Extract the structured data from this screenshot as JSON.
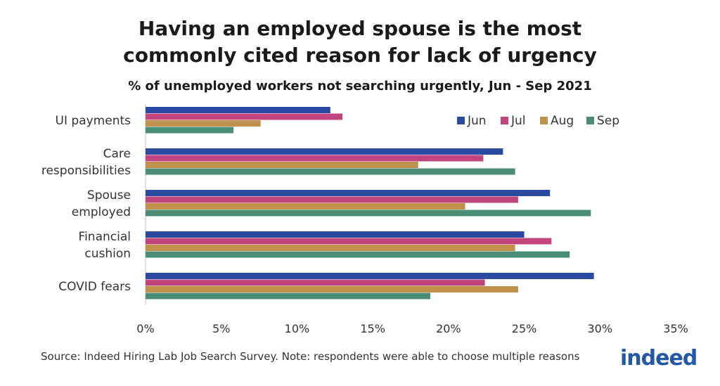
{
  "chart_data": {
    "type": "bar",
    "orientation": "horizontal",
    "title": "Having an employed spouse is the most commonly cited reason for lack of urgency",
    "subtitle": "% of unemployed workers not searching urgently, Jun - Sep 2021",
    "categories": [
      [
        "UI payments"
      ],
      [
        "Care",
        "responsibilities"
      ],
      [
        "Spouse",
        "employed"
      ],
      [
        "Financial",
        "cushion"
      ],
      [
        "COVID fears"
      ]
    ],
    "series": [
      {
        "name": "Jun",
        "color": "#2b4ba3",
        "values": [
          12.2,
          23.6,
          26.7,
          25.0,
          29.6
        ]
      },
      {
        "name": "Jul",
        "color": "#c2447f",
        "values": [
          13.0,
          22.3,
          24.6,
          26.8,
          22.4
        ]
      },
      {
        "name": "Aug",
        "color": "#c0914a",
        "values": [
          7.6,
          18.0,
          21.1,
          24.4,
          24.6
        ]
      },
      {
        "name": "Sep",
        "color": "#4a8c74",
        "values": [
          5.8,
          24.4,
          29.4,
          28.0,
          18.8
        ]
      }
    ],
    "xlim": [
      0,
      35
    ],
    "xticks": [
      "0%",
      "5%",
      "10%",
      "15%",
      "20%",
      "25%",
      "30%",
      "35%"
    ],
    "xlabel": "",
    "ylabel": "",
    "legend_position": "top-right",
    "grid": false
  },
  "footer": {
    "source": "Source: Indeed Hiring Lab Job Search Survey. Note: respondents were able to choose multiple reasons",
    "logo_text": "indeed",
    "logo_color": "#2557a7"
  }
}
